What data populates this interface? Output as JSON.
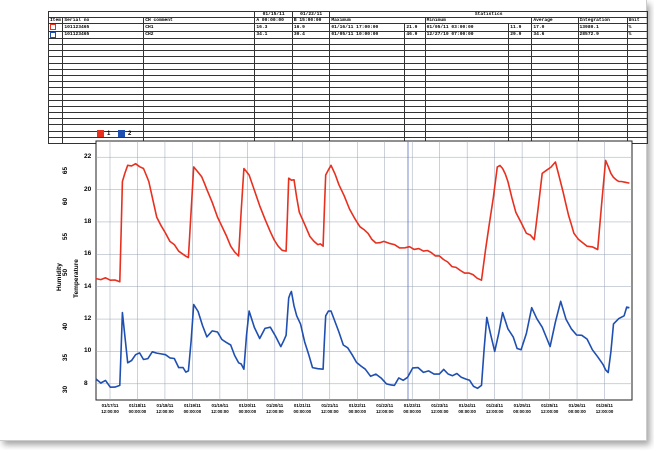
{
  "table": {
    "head1": [
      "",
      "",
      "",
      "01/15/11",
      "01/22/11",
      "Statistics"
    ],
    "head2": [
      "Item",
      "Serial no",
      "CH comment",
      "A 00:00:00",
      "B 15:00:00",
      "Maximum",
      "Minimum",
      "Average",
      "Integration",
      "Unit"
    ],
    "rows": [
      {
        "item": "1",
        "serial": "101123465",
        "comment": "CH1",
        "a": "16.3",
        "b": "16.9",
        "max_time": "01/16/11 17:00:00",
        "max_val": "21.9",
        "min_time": "01/05/11 03:00:00",
        "min_val": "11.9",
        "avg": "17.0",
        "integ": "13980.1",
        "unit": "%"
      },
      {
        "item": "2",
        "serial": "101123465",
        "comment": "CH2",
        "a": "34.1",
        "b": "30.4",
        "max_time": "01/05/11 10:00:00",
        "max_val": "46.9",
        "min_time": "12/27/10 07:00:00",
        "min_val": "29.9",
        "avg": "34.6",
        "integ": "28572.9",
        "unit": "%"
      }
    ]
  },
  "legend": [
    {
      "label": "1",
      "color": "#e8301f"
    },
    {
      "label": "2",
      "color": "#1f4fb0"
    }
  ],
  "axes": {
    "humidity_label": "Humidity",
    "temperature_label": "Temperature",
    "humidity_ticks": [
      "65",
      "60",
      "55",
      "50",
      "40",
      "35",
      "30"
    ],
    "temperature_ticks": [
      "22",
      "20",
      "18",
      "16",
      "14",
      "12",
      "10",
      "8"
    ],
    "x_ticks": [
      [
        "01/17/11",
        "12:00:00"
      ],
      [
        "01/18/11",
        "00:00:00"
      ],
      [
        "01/18/11",
        "12:00:00"
      ],
      [
        "01/19/11",
        "00:00:00"
      ],
      [
        "01/19/11",
        "12:00:00"
      ],
      [
        "01/20/11",
        "00:00:00"
      ],
      [
        "01/20/11",
        "12:00:00"
      ],
      [
        "01/21/11",
        "00:00:00"
      ],
      [
        "01/21/11",
        "12:00:00"
      ],
      [
        "01/22/11",
        "00:00:00"
      ],
      [
        "01/22/11",
        "12:00:00"
      ],
      [
        "01/23/11",
        "00:00:00"
      ],
      [
        "01/23/11",
        "12:00:00"
      ],
      [
        "01/24/11",
        "00:00:00"
      ],
      [
        "01/24/11",
        "12:00:00"
      ],
      [
        "01/25/11",
        "00:00:00"
      ],
      [
        "01/25/11",
        "12:00:00"
      ],
      [
        "01/26/11",
        "00:00:00"
      ],
      [
        "01/26/11",
        "12:00:00"
      ]
    ]
  },
  "chart_data": {
    "type": "line",
    "ylabel": "Temperature",
    "ylim": [
      7,
      23
    ],
    "grid": true,
    "series": [
      {
        "name": "1",
        "color": "#e8301f",
        "x": [
          0,
          0.9,
          1.0,
          1.2,
          1.5,
          1.8,
          2.0,
          2.3,
          2.8,
          3.3,
          3.5,
          3.7,
          4.0,
          4.2,
          4.6,
          5.1,
          5.4,
          5.6,
          5.8,
          6.2,
          6.6,
          6.9,
          7.2,
          7.3,
          7.5,
          7.7,
          8.1,
          8.4,
          8.6,
          8.7,
          8.9,
          9.2,
          9.6,
          10.0,
          10.3,
          10.6,
          10.9,
          11.3,
          11.7,
          12.4,
          13.0,
          13.8,
          14.6,
          15.2,
          15.4,
          15.6,
          15.9,
          16.3,
          16.6,
          16.9,
          17.4,
          17.7,
          17.9,
          18.1,
          18.6,
          19.0,
          19.3,
          19.5,
          19.7,
          19.9,
          20.2
        ],
        "y": [
          14.5,
          14.3,
          20.5,
          21.5,
          21.6,
          21.3,
          20.5,
          18.3,
          16.8,
          16.0,
          15.8,
          21.4,
          20.8,
          20.0,
          18.3,
          16.5,
          15.9,
          21.3,
          20.9,
          19.0,
          17.4,
          16.5,
          16.2,
          20.7,
          20.6,
          18.6,
          17.1,
          16.6,
          16.5,
          20.9,
          21.5,
          20.3,
          18.8,
          17.7,
          17.3,
          16.7,
          16.8,
          16.6,
          16.4,
          16.2,
          15.9,
          15.0,
          14.4,
          21.4,
          21.3,
          20.5,
          18.6,
          17.3,
          16.9,
          21.0,
          21.7,
          19.8,
          18.4,
          17.3,
          16.5,
          16.3,
          21.8,
          21.0,
          20.6,
          20.5,
          20.4
        ]
      },
      {
        "name": "2",
        "color": "#1f4fb0",
        "x": [
          0,
          0.9,
          1.0,
          1.2,
          1.5,
          1.8,
          2.3,
          2.8,
          3.3,
          3.5,
          3.7,
          4.2,
          4.6,
          5.1,
          5.4,
          5.6,
          5.8,
          6.2,
          6.6,
          7.0,
          7.2,
          7.3,
          7.4,
          7.6,
          7.9,
          8.2,
          8.6,
          8.7,
          8.9,
          9.2,
          9.7,
          10.2,
          10.6,
          11.0,
          11.3,
          11.8,
          12.2,
          12.6,
          13.0,
          13.5,
          14.0,
          14.6,
          14.8,
          15.1,
          15.4,
          15.8,
          16.1,
          16.5,
          16.9,
          17.2,
          17.6,
          18.0,
          18.4,
          18.8,
          19.2,
          19.4,
          19.6,
          20.0,
          20.2
        ],
        "y": [
          8.3,
          7.9,
          12.4,
          9.3,
          9.8,
          9.5,
          9.9,
          9.6,
          9.0,
          8.8,
          12.9,
          10.9,
          11.2,
          10.4,
          9.3,
          8.9,
          12.5,
          10.8,
          11.5,
          10.3,
          11.0,
          13.3,
          13.7,
          12.2,
          10.6,
          9.0,
          8.9,
          12.2,
          12.5,
          11.2,
          9.8,
          8.9,
          8.6,
          8.0,
          7.9,
          8.4,
          9.0,
          8.8,
          8.6,
          8.5,
          8.3,
          7.9,
          12.1,
          10.0,
          12.4,
          10.9,
          10.1,
          12.7,
          11.5,
          10.3,
          13.1,
          11.4,
          11.0,
          10.1,
          9.2,
          8.7,
          11.7,
          12.2,
          12.7
        ]
      }
    ]
  }
}
